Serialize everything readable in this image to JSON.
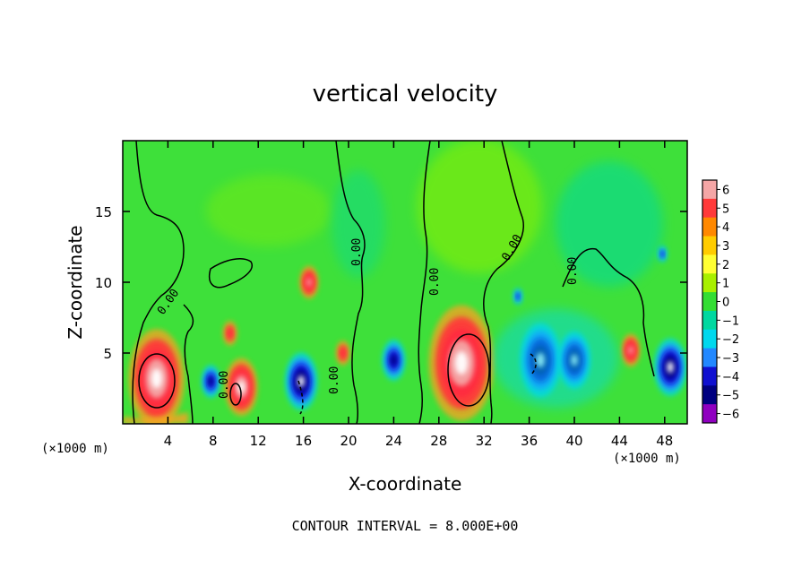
{
  "chart_data": {
    "type": "heatmap",
    "title": "vertical velocity",
    "xlabel": "X-coordinate",
    "ylabel": "Z-coordinate",
    "x_unit": "(×1000 m)",
    "x_unit_right": "(×1000 m)",
    "footer": "CONTOUR INTERVAL = 8.000E+00",
    "xlim": [
      0,
      50
    ],
    "ylim": [
      0,
      20
    ],
    "x_ticks": [
      4,
      8,
      12,
      16,
      20,
      24,
      28,
      32,
      36,
      40,
      44,
      48
    ],
    "y_ticks": [
      5,
      10,
      15
    ],
    "colorbar": {
      "levels": [
        6,
        5,
        4,
        3,
        2,
        1,
        0,
        -1,
        -2,
        -3,
        -4,
        -5,
        -6
      ],
      "labels": [
        "6",
        "5",
        "4",
        "3",
        "2",
        "1",
        "0",
        "−1",
        "−2",
        "−3",
        "−4",
        "−5",
        "−6"
      ],
      "colors": [
        "#f4a6a6",
        "#ff3a3a",
        "#ff8800",
        "#ffcc00",
        "#ffff33",
        "#a8f000",
        "#33dd33",
        "#00d8a0",
        "#00d8ee",
        "#2288ff",
        "#1010d0",
        "#000080",
        "#9000c0"
      ]
    },
    "contour_labels": [
      "0.00",
      "0.00",
      "0.00",
      "0.00",
      "0.00",
      "0.00",
      "0.00",
      "0.00"
    ],
    "features": [
      {
        "x": 3.0,
        "z": 3.2,
        "w": 12,
        "sign": "up"
      },
      {
        "x": 10.5,
        "z": 2.6,
        "w": 7,
        "sign": "up"
      },
      {
        "x": 16.5,
        "z": 10.0,
        "w": 4,
        "sign": "up"
      },
      {
        "x": 9.5,
        "z": 6.4,
        "w": 3,
        "sign": "up"
      },
      {
        "x": 19.5,
        "z": 5.0,
        "w": 3,
        "sign": "up"
      },
      {
        "x": 30.0,
        "z": 4.3,
        "w": 14,
        "sign": "up"
      },
      {
        "x": 45.0,
        "z": 5.2,
        "w": 4,
        "sign": "up"
      },
      {
        "x": 15.8,
        "z": 3.0,
        "w": 7,
        "sign": "down"
      },
      {
        "x": 7.8,
        "z": 3.0,
        "w": 4,
        "sign": "down"
      },
      {
        "x": 24.0,
        "z": 4.5,
        "w": 5,
        "sign": "down"
      },
      {
        "x": 37.0,
        "z": 4.5,
        "w": 9,
        "sign": "down"
      },
      {
        "x": 40.0,
        "z": 4.5,
        "w": 7,
        "sign": "down"
      },
      {
        "x": 48.5,
        "z": 4.0,
        "w": 7,
        "sign": "down"
      },
      {
        "x": 35.0,
        "z": 9.0,
        "w": 2,
        "sign": "down"
      },
      {
        "x": 47.8,
        "z": 12.0,
        "w": 2,
        "sign": "down"
      }
    ]
  }
}
